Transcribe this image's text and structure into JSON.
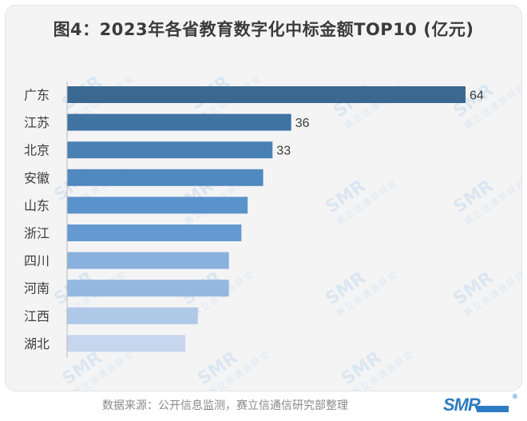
{
  "title": "图4：2023年各省教育数字化中标金额TOP10 (亿元)",
  "source": "数据来源：公开信息监测，赛立信通信研究部整理",
  "watermark": {
    "main": "SMR",
    "sub": "赛立信通信研究"
  },
  "logo": {
    "text": "SMR",
    "reg": "®"
  },
  "chart_data": {
    "type": "bar",
    "orientation": "horizontal",
    "categories": [
      "广东",
      "江苏",
      "北京",
      "安徽",
      "山东",
      "浙江",
      "四川",
      "河南",
      "江西",
      "湖北"
    ],
    "values": [
      64,
      36,
      33,
      31.5,
      29,
      28,
      26,
      26,
      21,
      19
    ],
    "data_labels": [
      "64",
      "36",
      "33",
      "",
      "",
      "",
      "",
      "",
      "",
      ""
    ],
    "colors": [
      "#3a6890",
      "#3f74a3",
      "#4a81b5",
      "#5089c0",
      "#5a92cb",
      "#6499d1",
      "#89b1de",
      "#94b8e1",
      "#b1c9e8",
      "#c6d6ee"
    ],
    "xlim": [
      0,
      64
    ],
    "grid": false,
    "legend": "none"
  }
}
